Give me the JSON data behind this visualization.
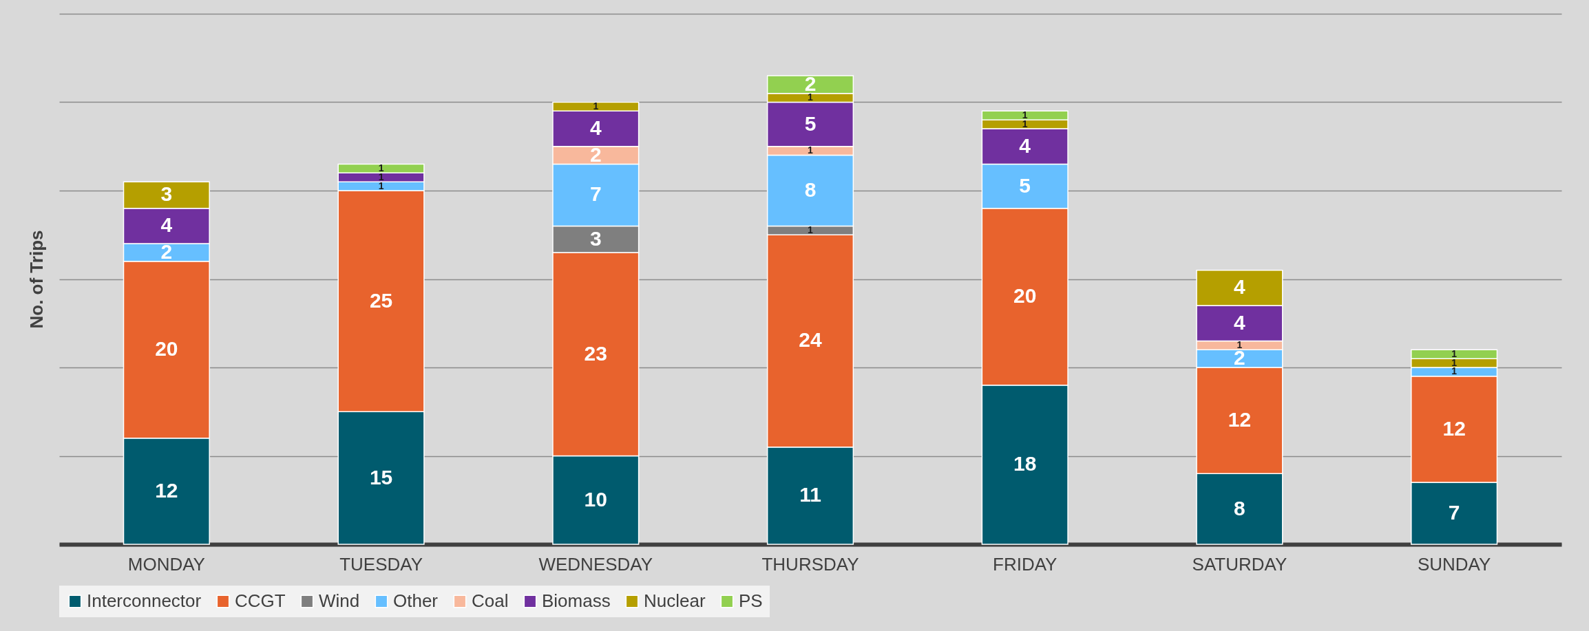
{
  "chart_data": {
    "type": "bar",
    "stacked": true,
    "ylabel": "No. of Trips",
    "categories": [
      "MONDAY",
      "TUESDAY",
      "WEDNESDAY",
      "THURSDAY",
      "FRIDAY",
      "SATURDAY",
      "SUNDAY"
    ],
    "series": [
      {
        "name": "Interconnector",
        "color": "#005b6e",
        "values": [
          12,
          15,
          10,
          11,
          18,
          8,
          7
        ]
      },
      {
        "name": "CCGT",
        "color": "#e8632d",
        "values": [
          20,
          25,
          23,
          24,
          20,
          12,
          12
        ]
      },
      {
        "name": "Wind",
        "color": "#7f7f7f",
        "values": [
          null,
          null,
          3,
          1,
          null,
          null,
          null
        ]
      },
      {
        "name": "Other",
        "color": "#66bfff",
        "values": [
          2,
          1,
          7,
          8,
          5,
          2,
          1
        ]
      },
      {
        "name": "Coal",
        "color": "#f8b89c",
        "values": [
          null,
          null,
          2,
          1,
          null,
          1,
          null
        ]
      },
      {
        "name": "Biomass",
        "color": "#70309f",
        "values": [
          4,
          1,
          4,
          5,
          4,
          4,
          null
        ]
      },
      {
        "name": "Nuclear",
        "color": "#b59f00",
        "values": [
          3,
          null,
          1,
          1,
          1,
          4,
          1
        ]
      },
      {
        "name": "PS",
        "color": "#92d050",
        "values": [
          null,
          1,
          null,
          2,
          1,
          null,
          1
        ]
      }
    ],
    "ylim": [
      0,
      60
    ],
    "yticks": [
      {
        "value": 0,
        "label": null
      },
      {
        "value": 10,
        "label": null
      },
      {
        "value": 20,
        "label": null
      },
      {
        "value": 30,
        "label": null
      },
      {
        "value": 40,
        "label": null
      },
      {
        "value": 50,
        "label": null
      },
      {
        "value": 60,
        "label": null
      }
    ],
    "tick_labels": "x",
    "grid": "y",
    "legend": "bottom",
    "data_labels": true
  }
}
